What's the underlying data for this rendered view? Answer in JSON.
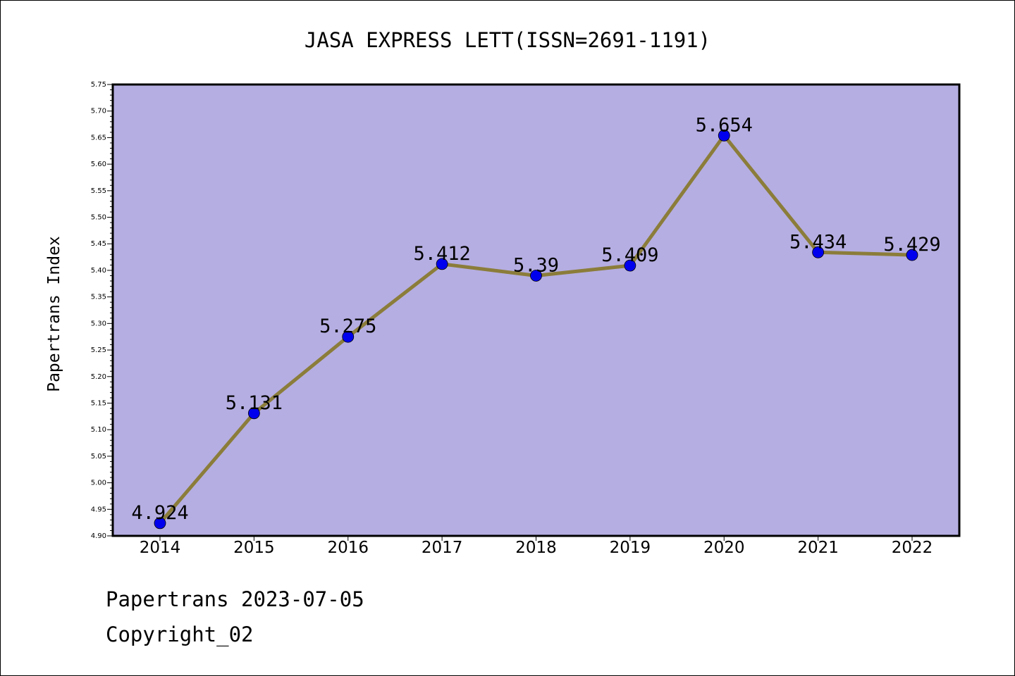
{
  "chart_data": {
    "type": "line",
    "title": "JASA EXPRESS LETT(ISSN=2691-1191)",
    "xlabel": "",
    "ylabel": "Papertrans Index",
    "categories": [
      "2014",
      "2015",
      "2016",
      "2017",
      "2018",
      "2019",
      "2020",
      "2021",
      "2022"
    ],
    "series": [
      {
        "values": [
          4.924,
          5.131,
          5.275,
          5.412,
          5.39,
          5.409,
          5.654,
          5.434,
          5.429
        ],
        "data_labels": [
          "4.924",
          "5.131",
          "5.275",
          "5.412",
          "5.39",
          "5.409",
          "5.654",
          "5.434",
          "5.429"
        ]
      }
    ],
    "ylim": [
      4.9,
      5.75
    ],
    "yticks": [
      "4.90",
      "4.95",
      "5.00",
      "5.05",
      "5.10",
      "5.15",
      "5.20",
      "5.25",
      "5.30",
      "5.35",
      "5.40",
      "5.45",
      "5.50",
      "5.55",
      "5.60",
      "5.65",
      "5.70",
      "5.75"
    ],
    "grid": false,
    "legend": "none",
    "colors": {
      "plot_background": "#b5aee2",
      "line": "#8b7d3a",
      "marker": "#0000ee"
    }
  },
  "footer": {
    "line1": "Papertrans 2023-07-05",
    "line2": "Copyright_02"
  }
}
